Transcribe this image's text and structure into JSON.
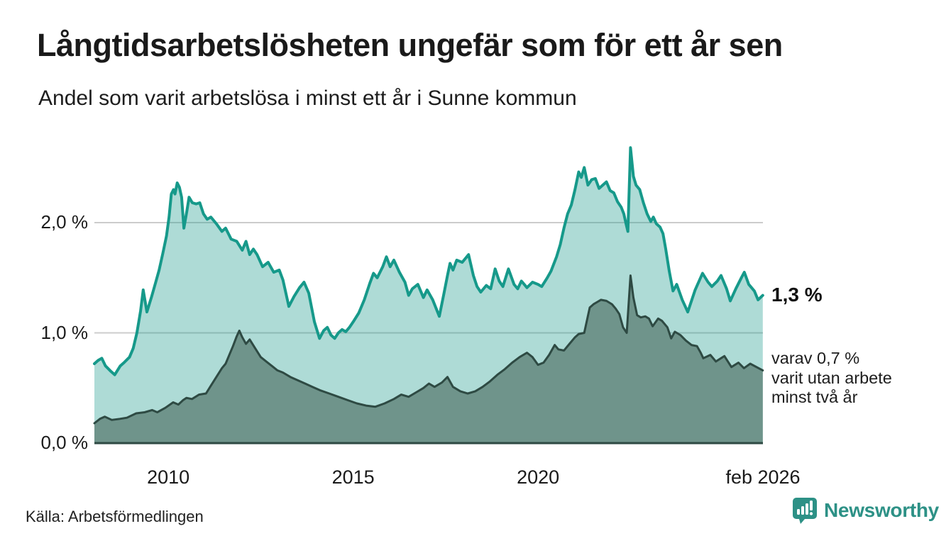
{
  "chart_data": {
    "type": "area",
    "title": "Långtidsarbetslösheten ungefär som för ett år sen",
    "subtitle": "Andel som varit arbetslösa i minst ett år i Sunne kommun",
    "x_domain": [
      2008.0,
      2026.083
    ],
    "y_domain": [
      0,
      2.75
    ],
    "grid_color": "#cccccc",
    "baseline_color": "#2e4a43",
    "x_ticks": [
      {
        "value": 2010,
        "label": "2010"
      },
      {
        "value": 2015,
        "label": "2015"
      },
      {
        "value": 2020,
        "label": "2020"
      },
      {
        "value": 2026.083,
        "label": "feb 2026"
      }
    ],
    "y_ticks": [
      {
        "value": 0,
        "label": "0,0 %"
      },
      {
        "value": 1,
        "label": "1,0 %"
      },
      {
        "value": 2,
        "label": "2,0 %"
      }
    ],
    "series": [
      {
        "name": "Andel arbetslösa minst ett år",
        "line_color": "#16998a",
        "fill_color": "rgba(22,153,138,0.35)",
        "line_width": 4,
        "points": [
          [
            2008.0,
            0.72
          ],
          [
            2008.1,
            0.75
          ],
          [
            2008.2,
            0.77
          ],
          [
            2008.3,
            0.7
          ],
          [
            2008.45,
            0.65
          ],
          [
            2008.55,
            0.62
          ],
          [
            2008.7,
            0.7
          ],
          [
            2008.8,
            0.73
          ],
          [
            2008.95,
            0.78
          ],
          [
            2009.05,
            0.86
          ],
          [
            2009.15,
            1.0
          ],
          [
            2009.25,
            1.2
          ],
          [
            2009.32,
            1.39
          ],
          [
            2009.42,
            1.19
          ],
          [
            2009.55,
            1.33
          ],
          [
            2009.65,
            1.45
          ],
          [
            2009.75,
            1.57
          ],
          [
            2009.85,
            1.72
          ],
          [
            2009.95,
            1.88
          ],
          [
            2010.02,
            2.05
          ],
          [
            2010.08,
            2.26
          ],
          [
            2010.14,
            2.3
          ],
          [
            2010.18,
            2.26
          ],
          [
            2010.24,
            2.36
          ],
          [
            2010.3,
            2.32
          ],
          [
            2010.36,
            2.23
          ],
          [
            2010.42,
            1.95
          ],
          [
            2010.5,
            2.1
          ],
          [
            2010.56,
            2.23
          ],
          [
            2010.65,
            2.18
          ],
          [
            2010.75,
            2.17
          ],
          [
            2010.85,
            2.18
          ],
          [
            2010.95,
            2.08
          ],
          [
            2011.05,
            2.03
          ],
          [
            2011.15,
            2.05
          ],
          [
            2011.3,
            1.99
          ],
          [
            2011.45,
            1.92
          ],
          [
            2011.55,
            1.95
          ],
          [
            2011.7,
            1.85
          ],
          [
            2011.85,
            1.83
          ],
          [
            2012.0,
            1.75
          ],
          [
            2012.1,
            1.83
          ],
          [
            2012.2,
            1.71
          ],
          [
            2012.3,
            1.76
          ],
          [
            2012.4,
            1.71
          ],
          [
            2012.55,
            1.6
          ],
          [
            2012.7,
            1.64
          ],
          [
            2012.85,
            1.55
          ],
          [
            2013.0,
            1.57
          ],
          [
            2013.1,
            1.48
          ],
          [
            2013.26,
            1.24
          ],
          [
            2013.4,
            1.33
          ],
          [
            2013.55,
            1.41
          ],
          [
            2013.67,
            1.46
          ],
          [
            2013.8,
            1.36
          ],
          [
            2013.95,
            1.1
          ],
          [
            2014.09,
            0.95
          ],
          [
            2014.2,
            1.02
          ],
          [
            2014.3,
            1.05
          ],
          [
            2014.4,
            0.98
          ],
          [
            2014.5,
            0.95
          ],
          [
            2014.6,
            1.0
          ],
          [
            2014.7,
            1.03
          ],
          [
            2014.8,
            1.01
          ],
          [
            2014.9,
            1.05
          ],
          [
            2015.0,
            1.1
          ],
          [
            2015.15,
            1.18
          ],
          [
            2015.3,
            1.3
          ],
          [
            2015.45,
            1.45
          ],
          [
            2015.55,
            1.54
          ],
          [
            2015.65,
            1.5
          ],
          [
            2015.8,
            1.6
          ],
          [
            2015.9,
            1.69
          ],
          [
            2016.0,
            1.6
          ],
          [
            2016.1,
            1.66
          ],
          [
            2016.25,
            1.55
          ],
          [
            2016.4,
            1.46
          ],
          [
            2016.5,
            1.34
          ],
          [
            2016.6,
            1.4
          ],
          [
            2016.75,
            1.44
          ],
          [
            2016.9,
            1.32
          ],
          [
            2017.0,
            1.39
          ],
          [
            2017.15,
            1.3
          ],
          [
            2017.33,
            1.15
          ],
          [
            2017.45,
            1.35
          ],
          [
            2017.55,
            1.52
          ],
          [
            2017.62,
            1.63
          ],
          [
            2017.7,
            1.57
          ],
          [
            2017.8,
            1.66
          ],
          [
            2017.95,
            1.64
          ],
          [
            2018.12,
            1.71
          ],
          [
            2018.25,
            1.52
          ],
          [
            2018.35,
            1.42
          ],
          [
            2018.45,
            1.37
          ],
          [
            2018.6,
            1.43
          ],
          [
            2018.72,
            1.4
          ],
          [
            2018.84,
            1.58
          ],
          [
            2018.95,
            1.47
          ],
          [
            2019.05,
            1.42
          ],
          [
            2019.2,
            1.58
          ],
          [
            2019.35,
            1.44
          ],
          [
            2019.45,
            1.4
          ],
          [
            2019.55,
            1.47
          ],
          [
            2019.7,
            1.41
          ],
          [
            2019.85,
            1.46
          ],
          [
            2020.0,
            1.44
          ],
          [
            2020.1,
            1.42
          ],
          [
            2020.25,
            1.5
          ],
          [
            2020.35,
            1.56
          ],
          [
            2020.5,
            1.69
          ],
          [
            2020.6,
            1.8
          ],
          [
            2020.7,
            1.95
          ],
          [
            2020.8,
            2.08
          ],
          [
            2020.9,
            2.16
          ],
          [
            2021.0,
            2.3
          ],
          [
            2021.1,
            2.46
          ],
          [
            2021.17,
            2.41
          ],
          [
            2021.25,
            2.5
          ],
          [
            2021.35,
            2.34
          ],
          [
            2021.45,
            2.39
          ],
          [
            2021.55,
            2.4
          ],
          [
            2021.65,
            2.31
          ],
          [
            2021.75,
            2.34
          ],
          [
            2021.85,
            2.37
          ],
          [
            2021.95,
            2.29
          ],
          [
            2022.05,
            2.27
          ],
          [
            2022.15,
            2.19
          ],
          [
            2022.25,
            2.14
          ],
          [
            2022.32,
            2.08
          ],
          [
            2022.38,
            1.99
          ],
          [
            2022.43,
            1.92
          ],
          [
            2022.5,
            2.68
          ],
          [
            2022.58,
            2.42
          ],
          [
            2022.65,
            2.34
          ],
          [
            2022.75,
            2.3
          ],
          [
            2022.85,
            2.18
          ],
          [
            2022.95,
            2.08
          ],
          [
            2023.05,
            2.01
          ],
          [
            2023.12,
            2.05
          ],
          [
            2023.2,
            1.99
          ],
          [
            2023.3,
            1.96
          ],
          [
            2023.38,
            1.9
          ],
          [
            2023.45,
            1.77
          ],
          [
            2023.55,
            1.56
          ],
          [
            2023.65,
            1.38
          ],
          [
            2023.75,
            1.44
          ],
          [
            2023.9,
            1.3
          ],
          [
            2024.05,
            1.19
          ],
          [
            2024.25,
            1.39
          ],
          [
            2024.45,
            1.54
          ],
          [
            2024.6,
            1.46
          ],
          [
            2024.7,
            1.42
          ],
          [
            2024.85,
            1.47
          ],
          [
            2024.95,
            1.52
          ],
          [
            2025.1,
            1.4
          ],
          [
            2025.2,
            1.29
          ],
          [
            2025.35,
            1.4
          ],
          [
            2025.5,
            1.5
          ],
          [
            2025.58,
            1.55
          ],
          [
            2025.7,
            1.44
          ],
          [
            2025.85,
            1.38
          ],
          [
            2025.95,
            1.3
          ],
          [
            2026.08,
            1.34
          ]
        ]
      },
      {
        "name": "varav arbetslösa minst två år",
        "line_color": "#2e4a43",
        "fill_color": "#6f948b",
        "line_width": 3,
        "points": [
          [
            2008.0,
            0.18
          ],
          [
            2008.15,
            0.22
          ],
          [
            2008.28,
            0.24
          ],
          [
            2008.47,
            0.21
          ],
          [
            2008.69,
            0.22
          ],
          [
            2008.88,
            0.23
          ],
          [
            2009.13,
            0.27
          ],
          [
            2009.36,
            0.28
          ],
          [
            2009.56,
            0.3
          ],
          [
            2009.7,
            0.28
          ],
          [
            2009.92,
            0.32
          ],
          [
            2010.13,
            0.37
          ],
          [
            2010.27,
            0.35
          ],
          [
            2010.4,
            0.39
          ],
          [
            2010.49,
            0.41
          ],
          [
            2010.64,
            0.4
          ],
          [
            2010.83,
            0.44
          ],
          [
            2011.02,
            0.45
          ],
          [
            2011.15,
            0.52
          ],
          [
            2011.3,
            0.6
          ],
          [
            2011.45,
            0.68
          ],
          [
            2011.55,
            0.72
          ],
          [
            2011.65,
            0.8
          ],
          [
            2011.75,
            0.88
          ],
          [
            2011.85,
            0.97
          ],
          [
            2011.92,
            1.02
          ],
          [
            2012.0,
            0.96
          ],
          [
            2012.1,
            0.9
          ],
          [
            2012.2,
            0.94
          ],
          [
            2012.35,
            0.86
          ],
          [
            2012.5,
            0.78
          ],
          [
            2012.65,
            0.74
          ],
          [
            2012.8,
            0.7
          ],
          [
            2012.95,
            0.66
          ],
          [
            2013.1,
            0.64
          ],
          [
            2013.3,
            0.6
          ],
          [
            2013.5,
            0.57
          ],
          [
            2013.7,
            0.54
          ],
          [
            2013.9,
            0.51
          ],
          [
            2014.1,
            0.48
          ],
          [
            2014.35,
            0.45
          ],
          [
            2014.6,
            0.42
          ],
          [
            2014.85,
            0.39
          ],
          [
            2015.1,
            0.36
          ],
          [
            2015.35,
            0.34
          ],
          [
            2015.6,
            0.33
          ],
          [
            2015.85,
            0.36
          ],
          [
            2016.1,
            0.4
          ],
          [
            2016.3,
            0.44
          ],
          [
            2016.5,
            0.42
          ],
          [
            2016.7,
            0.46
          ],
          [
            2016.9,
            0.5
          ],
          [
            2017.05,
            0.54
          ],
          [
            2017.2,
            0.51
          ],
          [
            2017.4,
            0.55
          ],
          [
            2017.55,
            0.6
          ],
          [
            2017.7,
            0.51
          ],
          [
            2017.9,
            0.47
          ],
          [
            2018.1,
            0.45
          ],
          [
            2018.3,
            0.47
          ],
          [
            2018.5,
            0.51
          ],
          [
            2018.7,
            0.56
          ],
          [
            2018.9,
            0.62
          ],
          [
            2019.1,
            0.67
          ],
          [
            2019.3,
            0.73
          ],
          [
            2019.5,
            0.78
          ],
          [
            2019.7,
            0.82
          ],
          [
            2019.85,
            0.78
          ],
          [
            2020.0,
            0.71
          ],
          [
            2020.15,
            0.73
          ],
          [
            2020.3,
            0.8
          ],
          [
            2020.45,
            0.89
          ],
          [
            2020.55,
            0.85
          ],
          [
            2020.7,
            0.84
          ],
          [
            2020.85,
            0.9
          ],
          [
            2021.0,
            0.96
          ],
          [
            2021.1,
            0.99
          ],
          [
            2021.25,
            1.0
          ],
          [
            2021.4,
            1.23
          ],
          [
            2021.5,
            1.26
          ],
          [
            2021.6,
            1.28
          ],
          [
            2021.7,
            1.3
          ],
          [
            2021.85,
            1.29
          ],
          [
            2022.0,
            1.26
          ],
          [
            2022.1,
            1.22
          ],
          [
            2022.2,
            1.17
          ],
          [
            2022.3,
            1.05
          ],
          [
            2022.4,
            1.0
          ],
          [
            2022.5,
            1.52
          ],
          [
            2022.58,
            1.32
          ],
          [
            2022.68,
            1.16
          ],
          [
            2022.78,
            1.14
          ],
          [
            2022.9,
            1.15
          ],
          [
            2023.0,
            1.13
          ],
          [
            2023.1,
            1.06
          ],
          [
            2023.25,
            1.13
          ],
          [
            2023.35,
            1.11
          ],
          [
            2023.5,
            1.05
          ],
          [
            2023.6,
            0.95
          ],
          [
            2023.7,
            1.01
          ],
          [
            2023.85,
            0.98
          ],
          [
            2024.0,
            0.93
          ],
          [
            2024.15,
            0.89
          ],
          [
            2024.3,
            0.88
          ],
          [
            2024.4,
            0.82
          ],
          [
            2024.47,
            0.77
          ],
          [
            2024.66,
            0.8
          ],
          [
            2024.81,
            0.74
          ],
          [
            2025.04,
            0.79
          ],
          [
            2025.23,
            0.69
          ],
          [
            2025.42,
            0.73
          ],
          [
            2025.57,
            0.68
          ],
          [
            2025.74,
            0.72
          ],
          [
            2026.08,
            0.66
          ]
        ]
      }
    ],
    "annotations": {
      "end_value_label": "1,3 %",
      "secondary_label_lines": [
        "varav 0,7 %",
        "varit utan arbete",
        "minst två år"
      ]
    }
  },
  "footer": {
    "source": "Källa: Arbetsförmedlingen",
    "brand_name": "Newsworthy",
    "brand_color": "#2d9186"
  }
}
